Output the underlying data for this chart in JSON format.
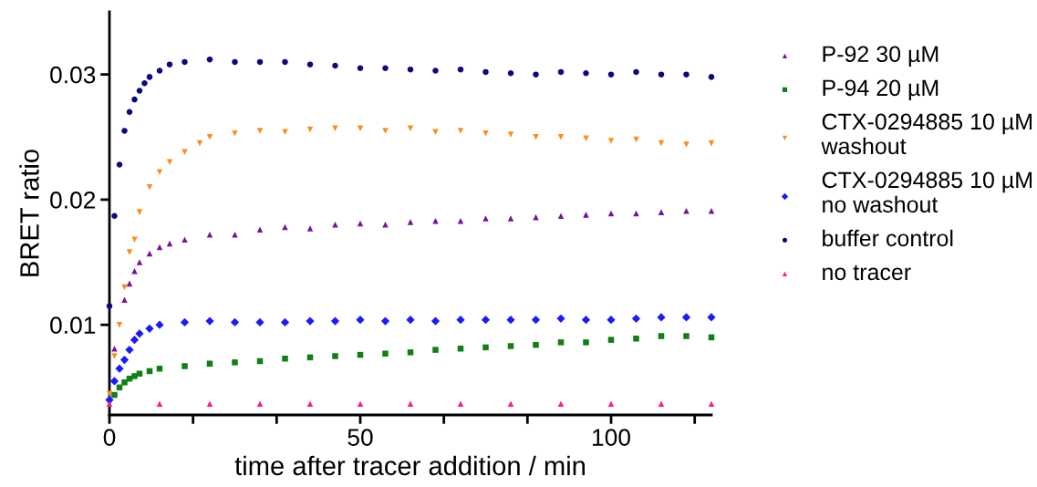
{
  "chart_data": {
    "type": "scatter",
    "xlabel": "time after tracer addition / min",
    "ylabel": "BRET ratio",
    "xlim": [
      0,
      120
    ],
    "ylim": [
      0.0028,
      0.035
    ],
    "xticks": [
      0,
      {
        "value": 16.67,
        "label": null
      },
      {
        "value": 33.33,
        "label": null
      },
      50,
      {
        "value": 66.67,
        "label": null
      },
      {
        "value": 83.33,
        "label": null
      },
      100,
      {
        "value": 116.67,
        "label": null
      }
    ],
    "yticks": [
      0.01,
      0.02,
      0.03
    ],
    "grid": false,
    "legend": "right",
    "series": [
      {
        "name": "P-92 30 µM",
        "color": "#75149a",
        "marker": "triangle",
        "x": [
          1,
          3,
          4,
          5,
          6,
          8,
          10,
          12,
          15,
          20,
          25,
          30,
          35,
          40,
          45,
          50,
          55,
          60,
          65,
          70,
          75,
          80,
          85,
          90,
          95,
          100,
          105,
          110,
          115,
          120
        ],
        "values": [
          0.0081,
          0.012,
          0.0133,
          0.0143,
          0.015,
          0.0157,
          0.0162,
          0.0165,
          0.0168,
          0.0172,
          0.0172,
          0.0176,
          0.0178,
          0.0177,
          0.018,
          0.0181,
          0.018,
          0.0182,
          0.0183,
          0.0183,
          0.0185,
          0.0185,
          0.0186,
          0.0187,
          0.0188,
          0.0189,
          0.0189,
          0.019,
          0.0191,
          0.0191
        ]
      },
      {
        "name": "P-94 20 µM",
        "color": "#127f12",
        "marker": "square",
        "x": [
          1,
          2,
          3,
          4,
          5,
          6,
          8,
          10,
          15,
          20,
          25,
          30,
          35,
          40,
          45,
          50,
          55,
          60,
          65,
          70,
          75,
          80,
          85,
          90,
          95,
          100,
          105,
          110,
          115,
          120
        ],
        "values": [
          0.0044,
          0.005,
          0.0054,
          0.0057,
          0.0059,
          0.0061,
          0.0063,
          0.0065,
          0.0067,
          0.0069,
          0.007,
          0.0071,
          0.0073,
          0.0074,
          0.0075,
          0.0076,
          0.0077,
          0.0078,
          0.008,
          0.0081,
          0.0082,
          0.0083,
          0.0084,
          0.0086,
          0.0086,
          0.0088,
          0.0089,
          0.0091,
          0.0091,
          0.009
        ]
      },
      {
        "name": "CTX-0294885 10 µM\nwashout",
        "color": "#ff8c1a",
        "marker": "triangle_down",
        "x": [
          0,
          1,
          2,
          3,
          4,
          5,
          6,
          8,
          10,
          12,
          15,
          18,
          20,
          25,
          30,
          35,
          40,
          45,
          50,
          55,
          60,
          65,
          70,
          75,
          80,
          85,
          90,
          95,
          100,
          105,
          110,
          115,
          120
        ],
        "values": [
          0.0045,
          0.0075,
          0.01,
          0.013,
          0.0158,
          0.0168,
          0.019,
          0.021,
          0.0222,
          0.023,
          0.0238,
          0.0245,
          0.025,
          0.0253,
          0.0255,
          0.0254,
          0.0256,
          0.0257,
          0.0257,
          0.0255,
          0.0257,
          0.0254,
          0.0255,
          0.0253,
          0.0252,
          0.025,
          0.025,
          0.0249,
          0.0247,
          0.0248,
          0.0245,
          0.0244,
          0.0245
        ]
      },
      {
        "name": "CTX-0294885 10 µM\nno washout",
        "color": "#1a1aff",
        "marker": "diamond",
        "x": [
          0,
          1,
          2,
          3,
          4,
          5,
          6,
          8,
          10,
          15,
          20,
          25,
          30,
          35,
          40,
          45,
          50,
          55,
          60,
          65,
          70,
          75,
          80,
          85,
          90,
          95,
          100,
          105,
          110,
          115,
          120
        ],
        "values": [
          0.004,
          0.0055,
          0.0065,
          0.0072,
          0.008,
          0.0088,
          0.0093,
          0.0097,
          0.01,
          0.0102,
          0.0103,
          0.0102,
          0.0102,
          0.0102,
          0.0103,
          0.0103,
          0.0104,
          0.0103,
          0.0104,
          0.0103,
          0.0104,
          0.0104,
          0.0104,
          0.0104,
          0.0105,
          0.0104,
          0.0104,
          0.0105,
          0.0106,
          0.0106,
          0.0106
        ]
      },
      {
        "name": "buffer control",
        "color": "#0a0a80",
        "marker": "circle",
        "x": [
          0,
          1,
          2,
          3,
          4,
          5,
          6,
          7,
          8,
          10,
          12,
          15,
          20,
          25,
          30,
          35,
          40,
          45,
          50,
          55,
          60,
          65,
          70,
          75,
          80,
          85,
          90,
          95,
          100,
          105,
          110,
          115,
          120
        ],
        "values": [
          0.0115,
          0.0187,
          0.0228,
          0.0255,
          0.027,
          0.028,
          0.0287,
          0.0293,
          0.0298,
          0.0303,
          0.0308,
          0.031,
          0.0312,
          0.031,
          0.031,
          0.031,
          0.0308,
          0.0307,
          0.0305,
          0.0305,
          0.0304,
          0.0303,
          0.0304,
          0.0302,
          0.0301,
          0.03,
          0.0302,
          0.0301,
          0.03,
          0.0302,
          0.03,
          0.03,
          0.0298
        ]
      },
      {
        "name": "no tracer",
        "color": "#ff1a8c",
        "marker": "triangle",
        "x": [
          0,
          10,
          20,
          30,
          40,
          50,
          60,
          70,
          80,
          90,
          100,
          110,
          120
        ],
        "values": [
          0.0037,
          0.0037,
          0.0037,
          0.0037,
          0.0037,
          0.0037,
          0.0037,
          0.0037,
          0.0037,
          0.0037,
          0.0037,
          0.0037,
          0.0037
        ]
      }
    ]
  }
}
